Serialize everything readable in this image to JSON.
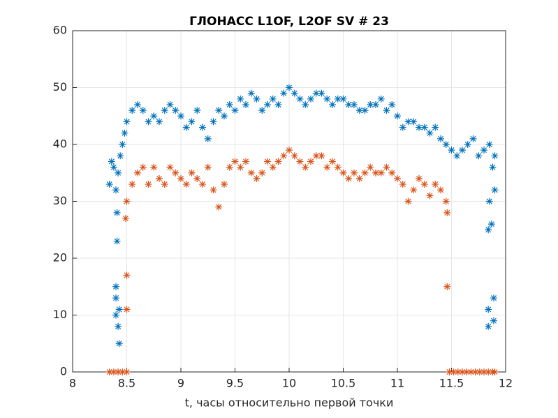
{
  "chart_data": {
    "type": "scatter",
    "title": "ГЛОНАСС L1OF, L2OF SV # 23",
    "xlabel": "t, часы относительно первой точки",
    "xlim": [
      8,
      12
    ],
    "xticks": [
      8,
      8.5,
      9,
      9.5,
      10,
      10.5,
      11,
      11.5,
      12
    ],
    "ylim": [
      0,
      60
    ],
    "yticks": [
      0,
      10,
      20,
      30,
      40,
      50,
      60
    ],
    "grid": true,
    "marker": "asterisk",
    "series": [
      {
        "color": "#0072bd",
        "x": [
          8.34,
          8.36,
          8.38,
          8.4,
          8.42,
          8.44,
          8.46,
          8.48,
          8.5,
          8.55,
          8.6,
          8.65,
          8.7,
          8.75,
          8.8,
          8.85,
          8.9,
          8.95,
          9.0,
          9.05,
          9.1,
          9.15,
          9.2,
          9.25,
          9.3,
          9.35,
          9.4,
          9.45,
          9.5,
          9.55,
          9.6,
          9.65,
          9.7,
          9.75,
          9.8,
          9.85,
          9.9,
          9.95,
          10.0,
          10.05,
          10.1,
          10.15,
          10.2,
          10.25,
          10.3,
          10.35,
          10.4,
          10.45,
          10.5,
          10.55,
          10.6,
          10.65,
          10.7,
          10.75,
          10.8,
          10.85,
          10.9,
          10.95,
          11.0,
          11.05,
          11.1,
          11.15,
          11.2,
          11.25,
          11.3,
          11.35,
          11.4,
          11.45,
          11.5,
          11.55,
          11.6,
          11.65,
          11.7,
          11.75,
          11.8,
          11.85,
          11.88,
          11.9,
          8.41,
          8.4,
          8.4,
          8.4,
          8.42,
          8.43,
          8.43,
          8.41,
          11.84,
          11.87,
          11.84,
          11.84,
          11.89,
          11.89,
          11.85,
          11.9
        ],
        "values": [
          33,
          37,
          36,
          32,
          35,
          38,
          40,
          42,
          44,
          46,
          47,
          46,
          44,
          45,
          44,
          46,
          47,
          46,
          45,
          43,
          44,
          46,
          43,
          41,
          44,
          46,
          45,
          47,
          46,
          48,
          47,
          49,
          48,
          46,
          47,
          48,
          47,
          49,
          50,
          49,
          48,
          47,
          48,
          49,
          49,
          48,
          47,
          48,
          48,
          47,
          47,
          46,
          46,
          47,
          47,
          48,
          46,
          47,
          45,
          43,
          44,
          44,
          43,
          43,
          42,
          43,
          41,
          40,
          39,
          38,
          39,
          40,
          41,
          38,
          39,
          40,
          36,
          38,
          23,
          15,
          13,
          10,
          8,
          5,
          11,
          28,
          25,
          26,
          11,
          8,
          13,
          9,
          30,
          32
        ]
      },
      {
        "color": "#d95319",
        "x": [
          8.5,
          8.55,
          8.6,
          8.65,
          8.7,
          8.75,
          8.8,
          8.85,
          8.9,
          8.95,
          9.0,
          9.05,
          9.1,
          9.15,
          9.2,
          9.25,
          9.3,
          9.35,
          9.4,
          9.45,
          9.5,
          9.55,
          9.6,
          9.65,
          9.7,
          9.75,
          9.8,
          9.85,
          9.9,
          9.95,
          10.0,
          10.05,
          10.1,
          10.15,
          10.2,
          10.25,
          10.3,
          10.35,
          10.4,
          10.45,
          10.5,
          10.55,
          10.6,
          10.65,
          10.7,
          10.75,
          10.8,
          10.85,
          10.9,
          10.95,
          11.0,
          11.05,
          11.1,
          11.15,
          11.2,
          11.25,
          11.3,
          11.35,
          11.4,
          11.45,
          11.46,
          8.5,
          8.5,
          8.49,
          11.46,
          8.34,
          8.38,
          8.42,
          8.46,
          8.5,
          11.48,
          11.52,
          11.56,
          11.6,
          11.64,
          11.68,
          11.72,
          11.76,
          11.8,
          11.84,
          11.88,
          11.9
        ],
        "values": [
          30,
          33,
          35,
          36,
          33,
          36,
          34,
          33,
          36,
          35,
          34,
          33,
          35,
          34,
          33,
          36,
          32,
          29,
          33,
          36,
          37,
          36,
          37,
          35,
          34,
          35,
          37,
          36,
          37,
          38,
          39,
          38,
          37,
          36,
          37,
          38,
          38,
          36,
          37,
          36,
          35,
          34,
          35,
          34,
          35,
          36,
          35,
          35,
          36,
          35,
          34,
          33,
          30,
          32,
          34,
          33,
          31,
          33,
          32,
          30,
          28,
          17,
          11,
          27,
          15,
          0,
          0,
          0,
          0,
          0,
          0,
          0,
          0,
          0,
          0,
          0,
          0,
          0,
          0,
          0,
          0,
          0
        ]
      }
    ]
  }
}
